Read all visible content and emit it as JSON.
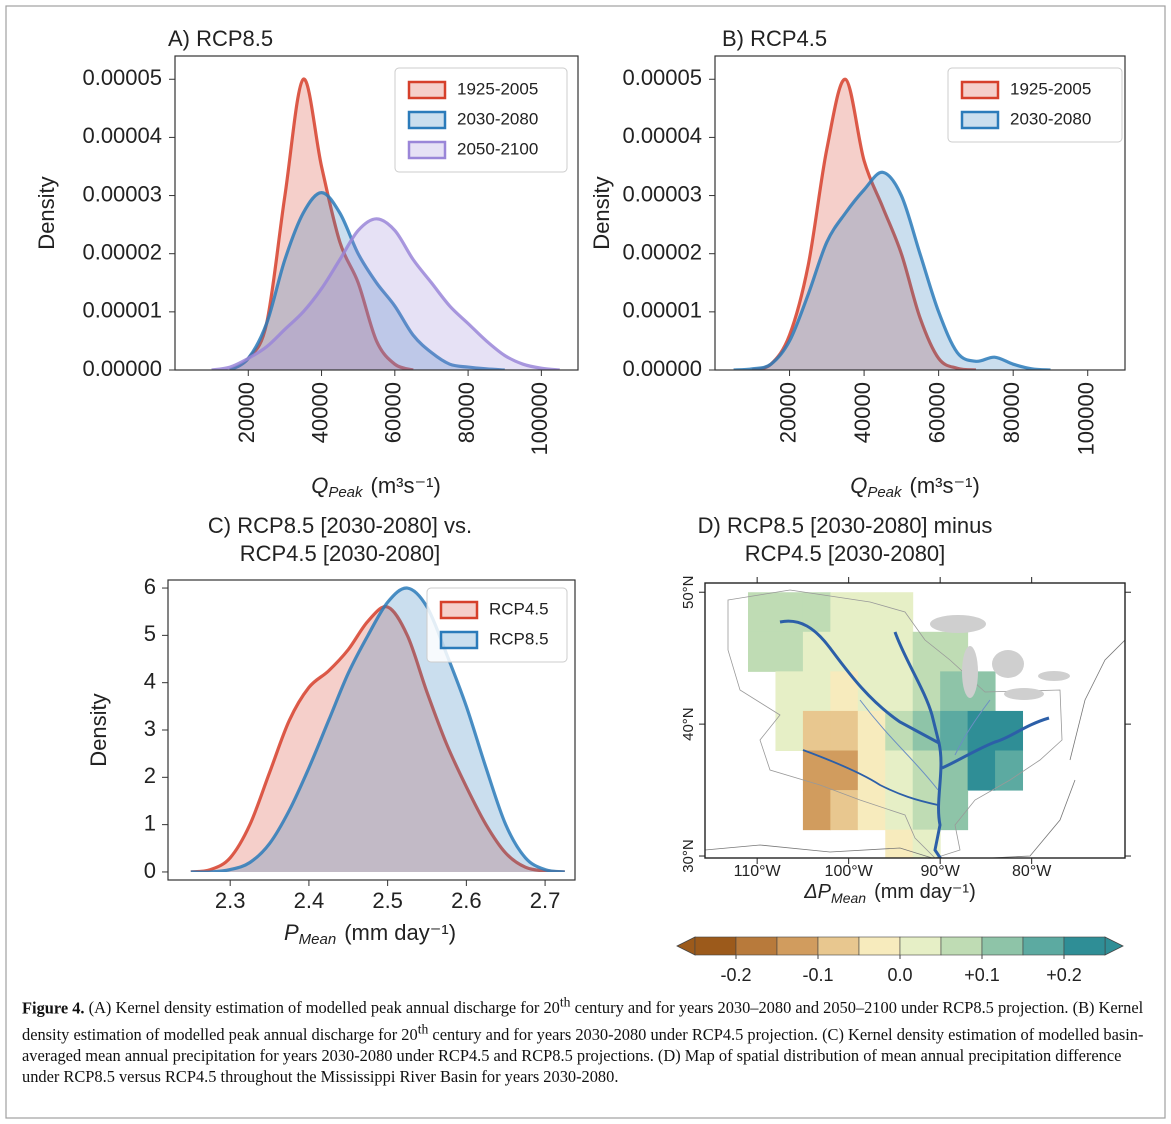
{
  "chart_data": [
    {
      "type": "area",
      "title": "A) RCP8.5",
      "ylabel": "Density",
      "xlabel": {
        "symbol": "Q",
        "subscript": "Peak",
        "units": "(m³s⁻¹)"
      },
      "x": [
        10000,
        15000,
        20000,
        25000,
        30000,
        35000,
        40000,
        45000,
        50000,
        55000,
        60000,
        65000,
        70000,
        75000,
        80000,
        85000,
        90000,
        95000,
        100000,
        105000
      ],
      "series": [
        {
          "name": "1925-2005",
          "color": "#d6402b",
          "values": [
            null,
            0,
            2e-06,
            8e-06,
            3e-05,
            5e-05,
            3.5e-05,
            2.2e-05,
            1.5e-05,
            5e-06,
            1e-06,
            0,
            null,
            null,
            null,
            null,
            null,
            null,
            null,
            null
          ]
        },
        {
          "name": "2030-2080",
          "color": "#2b7bba",
          "values": [
            null,
            0,
            2e-06,
            8e-06,
            1.9e-05,
            2.7e-05,
            3.05e-05,
            2.7e-05,
            2e-05,
            1.5e-05,
            1.1e-05,
            6e-06,
            3e-06,
            1e-06,
            5e-07,
            2e-07,
            0,
            null,
            null,
            null
          ]
        },
        {
          "name": "2050-2100",
          "color": "#9a86d8",
          "values": [
            0,
            5e-07,
            2e-06,
            4e-06,
            7e-06,
            1e-05,
            1.4e-05,
            1.9e-05,
            2.4e-05,
            2.6e-05,
            2.4e-05,
            1.9e-05,
            1.5e-05,
            1.1e-05,
            8e-06,
            5e-06,
            2.5e-06,
            1e-06,
            3e-07,
            0
          ]
        }
      ],
      "xlim": [
        0,
        110000
      ],
      "xticks": [
        20000,
        40000,
        60000,
        80000,
        100000
      ],
      "ylim": [
        0,
        5.4e-05
      ],
      "yticks": [
        {
          "value": 0,
          "label": "0.00000"
        },
        1e-05,
        2e-05,
        3e-05,
        4e-05,
        5e-05
      ],
      "legend": "upper right"
    },
    {
      "type": "area",
      "title": "B) RCP4.5",
      "ylabel": "Density",
      "xlabel": {
        "symbol": "Q",
        "subscript": "Peak",
        "units": "(m³s⁻¹)"
      },
      "x": [
        5000,
        10000,
        15000,
        20000,
        25000,
        30000,
        35000,
        40000,
        45000,
        50000,
        55000,
        60000,
        65000,
        70000,
        75000,
        80000,
        85000,
        90000
      ],
      "series": [
        {
          "name": "1925-2005",
          "color": "#d6402b",
          "values": [
            null,
            0,
            1e-06,
            6e-06,
            1.8e-05,
            3.8e-05,
            5e-05,
            3.6e-05,
            2.8e-05,
            2e-05,
            9e-06,
            2e-06,
            3e-07,
            0,
            null,
            null,
            null,
            null
          ]
        },
        {
          "name": "2030-2080",
          "color": "#2b7bba",
          "values": [
            0,
            2e-07,
            1e-06,
            5e-06,
            1.3e-05,
            2.2e-05,
            2.7e-05,
            3.1e-05,
            3.4e-05,
            3e-05,
            2e-05,
            1e-05,
            3e-06,
            1.5e-06,
            2.2e-06,
            1e-06,
            2e-07,
            0
          ]
        }
      ],
      "xlim": [
        0,
        110000
      ],
      "xticks": [
        20000,
        40000,
        60000,
        80000,
        100000
      ],
      "ylim": [
        0,
        5.4e-05
      ],
      "yticks": [
        {
          "value": 0,
          "label": "0.00000"
        },
        1e-05,
        2e-05,
        3e-05,
        4e-05,
        5e-05
      ],
      "legend": "upper right"
    },
    {
      "type": "area",
      "title": [
        "C) RCP8.5 [2030-2080] vs.",
        "RCP4.5 [2030-2080]"
      ],
      "ylabel": "Density",
      "xlabel": {
        "symbol": "P",
        "subscript": "Mean",
        "units": "(mm day⁻¹)"
      },
      "x": [
        2.25,
        2.275,
        2.3,
        2.325,
        2.35,
        2.375,
        2.4,
        2.425,
        2.45,
        2.475,
        2.5,
        2.525,
        2.55,
        2.575,
        2.6,
        2.625,
        2.65,
        2.675,
        2.7,
        2.725
      ],
      "series": [
        {
          "name": "RCP4.5",
          "color": "#d6402b",
          "values": [
            0,
            0.05,
            0.3,
            1.0,
            2.1,
            3.2,
            3.9,
            4.25,
            4.7,
            5.3,
            5.6,
            5.0,
            3.8,
            2.7,
            1.8,
            1.0,
            0.4,
            0.1,
            0.02,
            0
          ]
        },
        {
          "name": "RCP8.5",
          "color": "#2b7bba",
          "values": [
            0,
            0,
            0.05,
            0.2,
            0.6,
            1.3,
            2.2,
            3.2,
            4.2,
            5.0,
            5.7,
            6.0,
            5.6,
            4.6,
            3.5,
            2.2,
            1.0,
            0.3,
            0.05,
            0
          ]
        }
      ],
      "xlim": [
        2.221,
        2.738
      ],
      "xticks": [
        2.3,
        2.4,
        2.5,
        2.6,
        2.7
      ],
      "ylim": [
        -0.17,
        6.17
      ],
      "yticks": [
        0,
        1,
        2,
        3,
        4,
        5,
        6
      ],
      "legend": "upper right"
    },
    {
      "type": "map",
      "title": [
        "D) RCP8.5 [2030-2080] minus",
        "RCP4.5 [2030-2080]"
      ],
      "xlabel": {
        "symbol": "ΔP",
        "subscript": "Mean",
        "units": "(mm day⁻¹)"
      },
      "xlim": [
        -115.7,
        -69.8
      ],
      "ylim": [
        29.85,
        50.7
      ],
      "xticks": [
        {
          "value": -110,
          "label": "110°W"
        },
        {
          "value": -100,
          "label": "100°W"
        },
        {
          "value": -90,
          "label": "90°W"
        },
        {
          "value": -80,
          "label": "80°W"
        }
      ],
      "yticks": [
        {
          "value": 30,
          "label": "30°N"
        },
        {
          "value": 40,
          "label": "40°N"
        },
        {
          "value": 50,
          "label": "50°N"
        }
      ],
      "lon_edges": [
        -114,
        -111,
        -108,
        -105,
        -102,
        -99,
        -96,
        -93,
        -90,
        -87,
        -84,
        -81,
        -78
      ],
      "lat_edges": [
        50,
        47,
        44,
        41,
        38,
        35,
        32,
        29
      ],
      "values": [
        [
          null,
          0.08,
          0.07,
          0.06,
          0.04,
          0.02,
          0.03,
          null,
          null,
          null,
          null,
          null
        ],
        [
          null,
          0.06,
          0.05,
          0.04,
          0.01,
          0.0,
          0.02,
          0.06,
          0.08,
          null,
          null,
          null
        ],
        [
          null,
          null,
          0.03,
          0.02,
          -0.02,
          0.0,
          0.04,
          0.08,
          0.1,
          0.12,
          null,
          null
        ],
        [
          null,
          null,
          0.02,
          -0.08,
          -0.1,
          -0.02,
          0.05,
          0.12,
          0.16,
          0.2,
          0.22,
          null
        ],
        [
          null,
          null,
          null,
          -0.12,
          -0.15,
          -0.05,
          0.03,
          0.08,
          0.14,
          0.2,
          0.18,
          null
        ],
        [
          null,
          null,
          null,
          -0.15,
          -0.1,
          -0.03,
          0.01,
          0.06,
          0.1,
          null,
          null,
          null
        ],
        [
          null,
          null,
          null,
          null,
          null,
          null,
          -0.02,
          0.0,
          null,
          null,
          null,
          null
        ]
      ],
      "colorbar": {
        "bounds": [
          -0.25,
          -0.2,
          -0.15,
          -0.1,
          -0.05,
          0,
          0.05,
          0.1,
          0.15,
          0.2,
          0.25
        ],
        "colors": [
          "#9c5a1b",
          "#b87a3b",
          "#d19c5e",
          "#e8c78f",
          "#f7ebbd",
          "#e6efc6",
          "#bfdcb4",
          "#8ec4a8",
          "#5caaa1",
          "#2f8e96"
        ],
        "ticks": [
          -0.2,
          -0.1,
          {
            "value": 0,
            "label": "0.0"
          },
          {
            "value": 0.1,
            "label": "+0.1"
          },
          {
            "value": 0.2,
            "label": "+0.2"
          }
        ],
        "extend": "both"
      }
    }
  ],
  "caption": {
    "label": "Figure 4.",
    "runs": [
      "(A) Kernel density estimation of modelled peak annual discharge for 20",
      "th",
      " century and for years 2030–2080 and 2050–2100 under RCP8.5 projection. (B) Kernel density estimation of modelled peak annual discharge for 20",
      "th",
      " century and for years 2030-2080 under RCP4.5 projection. (C) Kernel density estimation of modelled basin-averaged mean annual precipitation for years 2030-2080 under RCP4.5 and RCP8.5 projections. (D) Map of spatial distribution of mean annual precipitation difference under RCP8.5 versus RCP4.5 throughout the Mississippi River Basin for years 2030-2080."
    ]
  }
}
